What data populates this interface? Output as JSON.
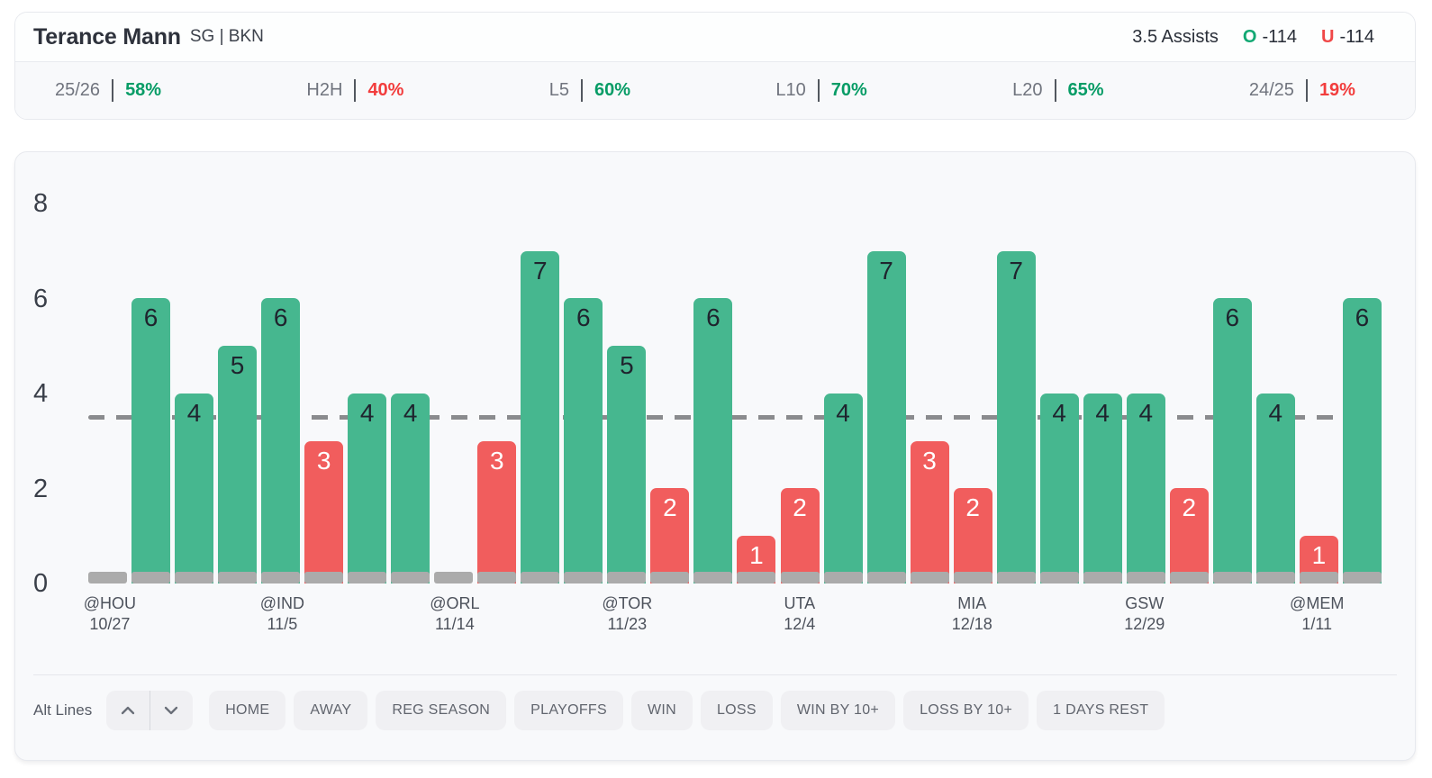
{
  "header": {
    "player_name": "Terance Mann",
    "position_team": "SG | BKN",
    "prop_line": "3.5 Assists",
    "over_symbol": "O",
    "over_odds": "-114",
    "under_symbol": "U",
    "under_odds": "-114"
  },
  "stats": [
    {
      "label": "25/26",
      "value": "58%",
      "trend": "positive"
    },
    {
      "label": "H2H",
      "value": "40%",
      "trend": "negative"
    },
    {
      "label": "L5",
      "value": "60%",
      "trend": "positive"
    },
    {
      "label": "L10",
      "value": "70%",
      "trend": "positive"
    },
    {
      "label": "L20",
      "value": "65%",
      "trend": "positive"
    },
    {
      "label": "24/25",
      "value": "19%",
      "trend": "negative"
    }
  ],
  "chart_data": {
    "type": "bar",
    "ylim": [
      0,
      8
    ],
    "yticks": [
      0,
      2,
      4,
      6,
      8
    ],
    "prop_line_value": 3.5,
    "grid": false,
    "games": [
      {
        "value": 0,
        "opp": "@HOU",
        "date": "10/27"
      },
      {
        "value": 6
      },
      {
        "value": 4
      },
      {
        "value": 5
      },
      {
        "value": 6,
        "opp": "@IND",
        "date": "11/5"
      },
      {
        "value": 3
      },
      {
        "value": 4
      },
      {
        "value": 4
      },
      {
        "value": 0,
        "opp": "@ORL",
        "date": "11/14"
      },
      {
        "value": 3
      },
      {
        "value": 7
      },
      {
        "value": 6
      },
      {
        "value": 5,
        "opp": "@TOR",
        "date": "11/23"
      },
      {
        "value": 2
      },
      {
        "value": 6
      },
      {
        "value": 1
      },
      {
        "value": 2,
        "opp": "UTA",
        "date": "12/4"
      },
      {
        "value": 4
      },
      {
        "value": 7
      },
      {
        "value": 3
      },
      {
        "value": 2,
        "opp": "MIA",
        "date": "12/18"
      },
      {
        "value": 7
      },
      {
        "value": 4
      },
      {
        "value": 4
      },
      {
        "value": 4,
        "opp": "GSW",
        "date": "12/29"
      },
      {
        "value": 2
      },
      {
        "value": 6
      },
      {
        "value": 4
      },
      {
        "value": 1,
        "opp": "@MEM",
        "date": "1/11"
      },
      {
        "value": 6
      }
    ]
  },
  "colors": {
    "over_bar": "#46b78f",
    "under_bar": "#f15d5d",
    "no_data_stub": "#ababab",
    "positive_text": "#079c66",
    "negative_text": "#f23d3d",
    "over_symbol": "#12a873",
    "under_symbol": "#f04848",
    "prop_line_dash": "#8a8b8e",
    "bar_label_dark": "#1f242e",
    "bar_label_light": "#ffffff"
  },
  "footer": {
    "alt_lines_label": "Alt Lines",
    "filters": [
      "HOME",
      "AWAY",
      "REG SEASON",
      "PLAYOFFS",
      "WIN",
      "LOSS",
      "WIN BY 10+",
      "LOSS BY 10+",
      "1 DAYS REST"
    ]
  }
}
